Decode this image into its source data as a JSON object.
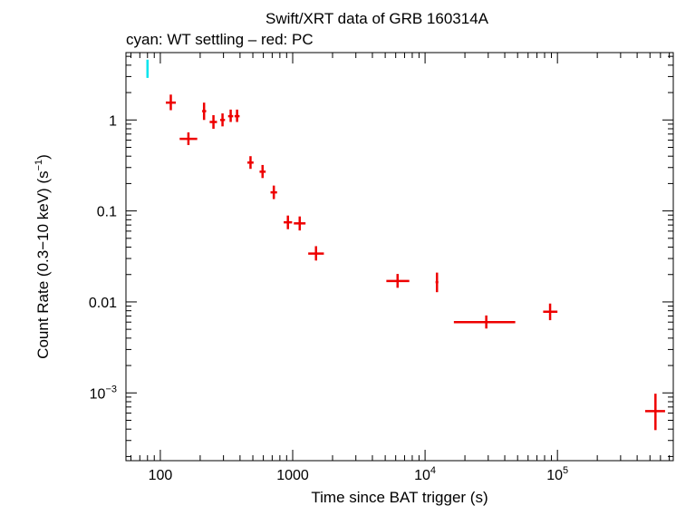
{
  "chart_data": {
    "type": "scatter",
    "title": "Swift/XRT data of GRB 160314A",
    "subtitle": "cyan: WT settling – red: PC",
    "xlabel": "Time since BAT trigger (s)",
    "ylabel": "Count Rate (0.3−10 keV) (s",
    "ylabel_sup": "−1",
    "ylabel_end": ")",
    "x_scale": "log",
    "y_scale": "log",
    "xlim": [
      55,
      750000
    ],
    "ylim": [
      0.00018,
      5.5
    ],
    "x_ticks": [
      {
        "value": 100,
        "label": "100"
      },
      {
        "value": 1000,
        "label": "1000"
      },
      {
        "value": 10000,
        "label": "10",
        "sup": "4"
      },
      {
        "value": 100000,
        "label": "10",
        "sup": "5"
      }
    ],
    "y_ticks": [
      {
        "value": 1,
        "label": "1"
      },
      {
        "value": 0.1,
        "label": "0.1"
      },
      {
        "value": 0.01,
        "label": "0.01"
      },
      {
        "value": 0.001,
        "label": "10",
        "sup": "−3"
      }
    ],
    "grid": false,
    "series": [
      {
        "name": "WT settling",
        "color": "#00e5ee",
        "points": [
          {
            "x": 80,
            "x_lo": 79,
            "x_hi": 81,
            "y": 3.7,
            "y_lo": 2.9,
            "y_hi": 4.6
          }
        ]
      },
      {
        "name": "PC",
        "color": "#ee0000",
        "points": [
          {
            "x": 120,
            "x_lo": 110,
            "x_hi": 131,
            "y": 1.55,
            "y_lo": 1.28,
            "y_hi": 1.9
          },
          {
            "x": 163,
            "x_lo": 140,
            "x_hi": 190,
            "y": 0.62,
            "y_lo": 0.53,
            "y_hi": 0.73
          },
          {
            "x": 214,
            "x_lo": 207,
            "x_hi": 222,
            "y": 1.25,
            "y_lo": 1.0,
            "y_hi": 1.55
          },
          {
            "x": 252,
            "x_lo": 236,
            "x_hi": 268,
            "y": 0.95,
            "y_lo": 0.8,
            "y_hi": 1.13
          },
          {
            "x": 295,
            "x_lo": 283,
            "x_hi": 308,
            "y": 1.0,
            "y_lo": 0.85,
            "y_hi": 1.18
          },
          {
            "x": 340,
            "x_lo": 325,
            "x_hi": 355,
            "y": 1.1,
            "y_lo": 0.95,
            "y_hi": 1.3
          },
          {
            "x": 380,
            "x_lo": 364,
            "x_hi": 397,
            "y": 1.1,
            "y_lo": 0.95,
            "y_hi": 1.3
          },
          {
            "x": 480,
            "x_lo": 455,
            "x_hi": 506,
            "y": 0.34,
            "y_lo": 0.29,
            "y_hi": 0.4
          },
          {
            "x": 592,
            "x_lo": 562,
            "x_hi": 625,
            "y": 0.27,
            "y_lo": 0.23,
            "y_hi": 0.32
          },
          {
            "x": 720,
            "x_lo": 680,
            "x_hi": 762,
            "y": 0.16,
            "y_lo": 0.135,
            "y_hi": 0.19
          },
          {
            "x": 920,
            "x_lo": 855,
            "x_hi": 990,
            "y": 0.075,
            "y_lo": 0.063,
            "y_hi": 0.089
          },
          {
            "x": 1130,
            "x_lo": 1020,
            "x_hi": 1250,
            "y": 0.073,
            "y_lo": 0.061,
            "y_hi": 0.087
          },
          {
            "x": 1500,
            "x_lo": 1310,
            "x_hi": 1720,
            "y": 0.034,
            "y_lo": 0.0285,
            "y_hi": 0.041
          },
          {
            "x": 6200,
            "x_lo": 5100,
            "x_hi": 7600,
            "y": 0.017,
            "y_lo": 0.0143,
            "y_hi": 0.0203
          },
          {
            "x": 12300,
            "x_lo": 12000,
            "x_hi": 12600,
            "y": 0.0165,
            "y_lo": 0.0128,
            "y_hi": 0.021
          },
          {
            "x": 29000,
            "x_lo": 16500,
            "x_hi": 48000,
            "y": 0.006,
            "y_lo": 0.0051,
            "y_hi": 0.0071
          },
          {
            "x": 88000,
            "x_lo": 78000,
            "x_hi": 100000,
            "y": 0.0078,
            "y_lo": 0.0063,
            "y_hi": 0.0096
          },
          {
            "x": 550000,
            "x_lo": 460000,
            "x_hi": 650000,
            "y": 0.00063,
            "y_lo": 0.00039,
            "y_hi": 0.00098
          }
        ]
      }
    ]
  }
}
